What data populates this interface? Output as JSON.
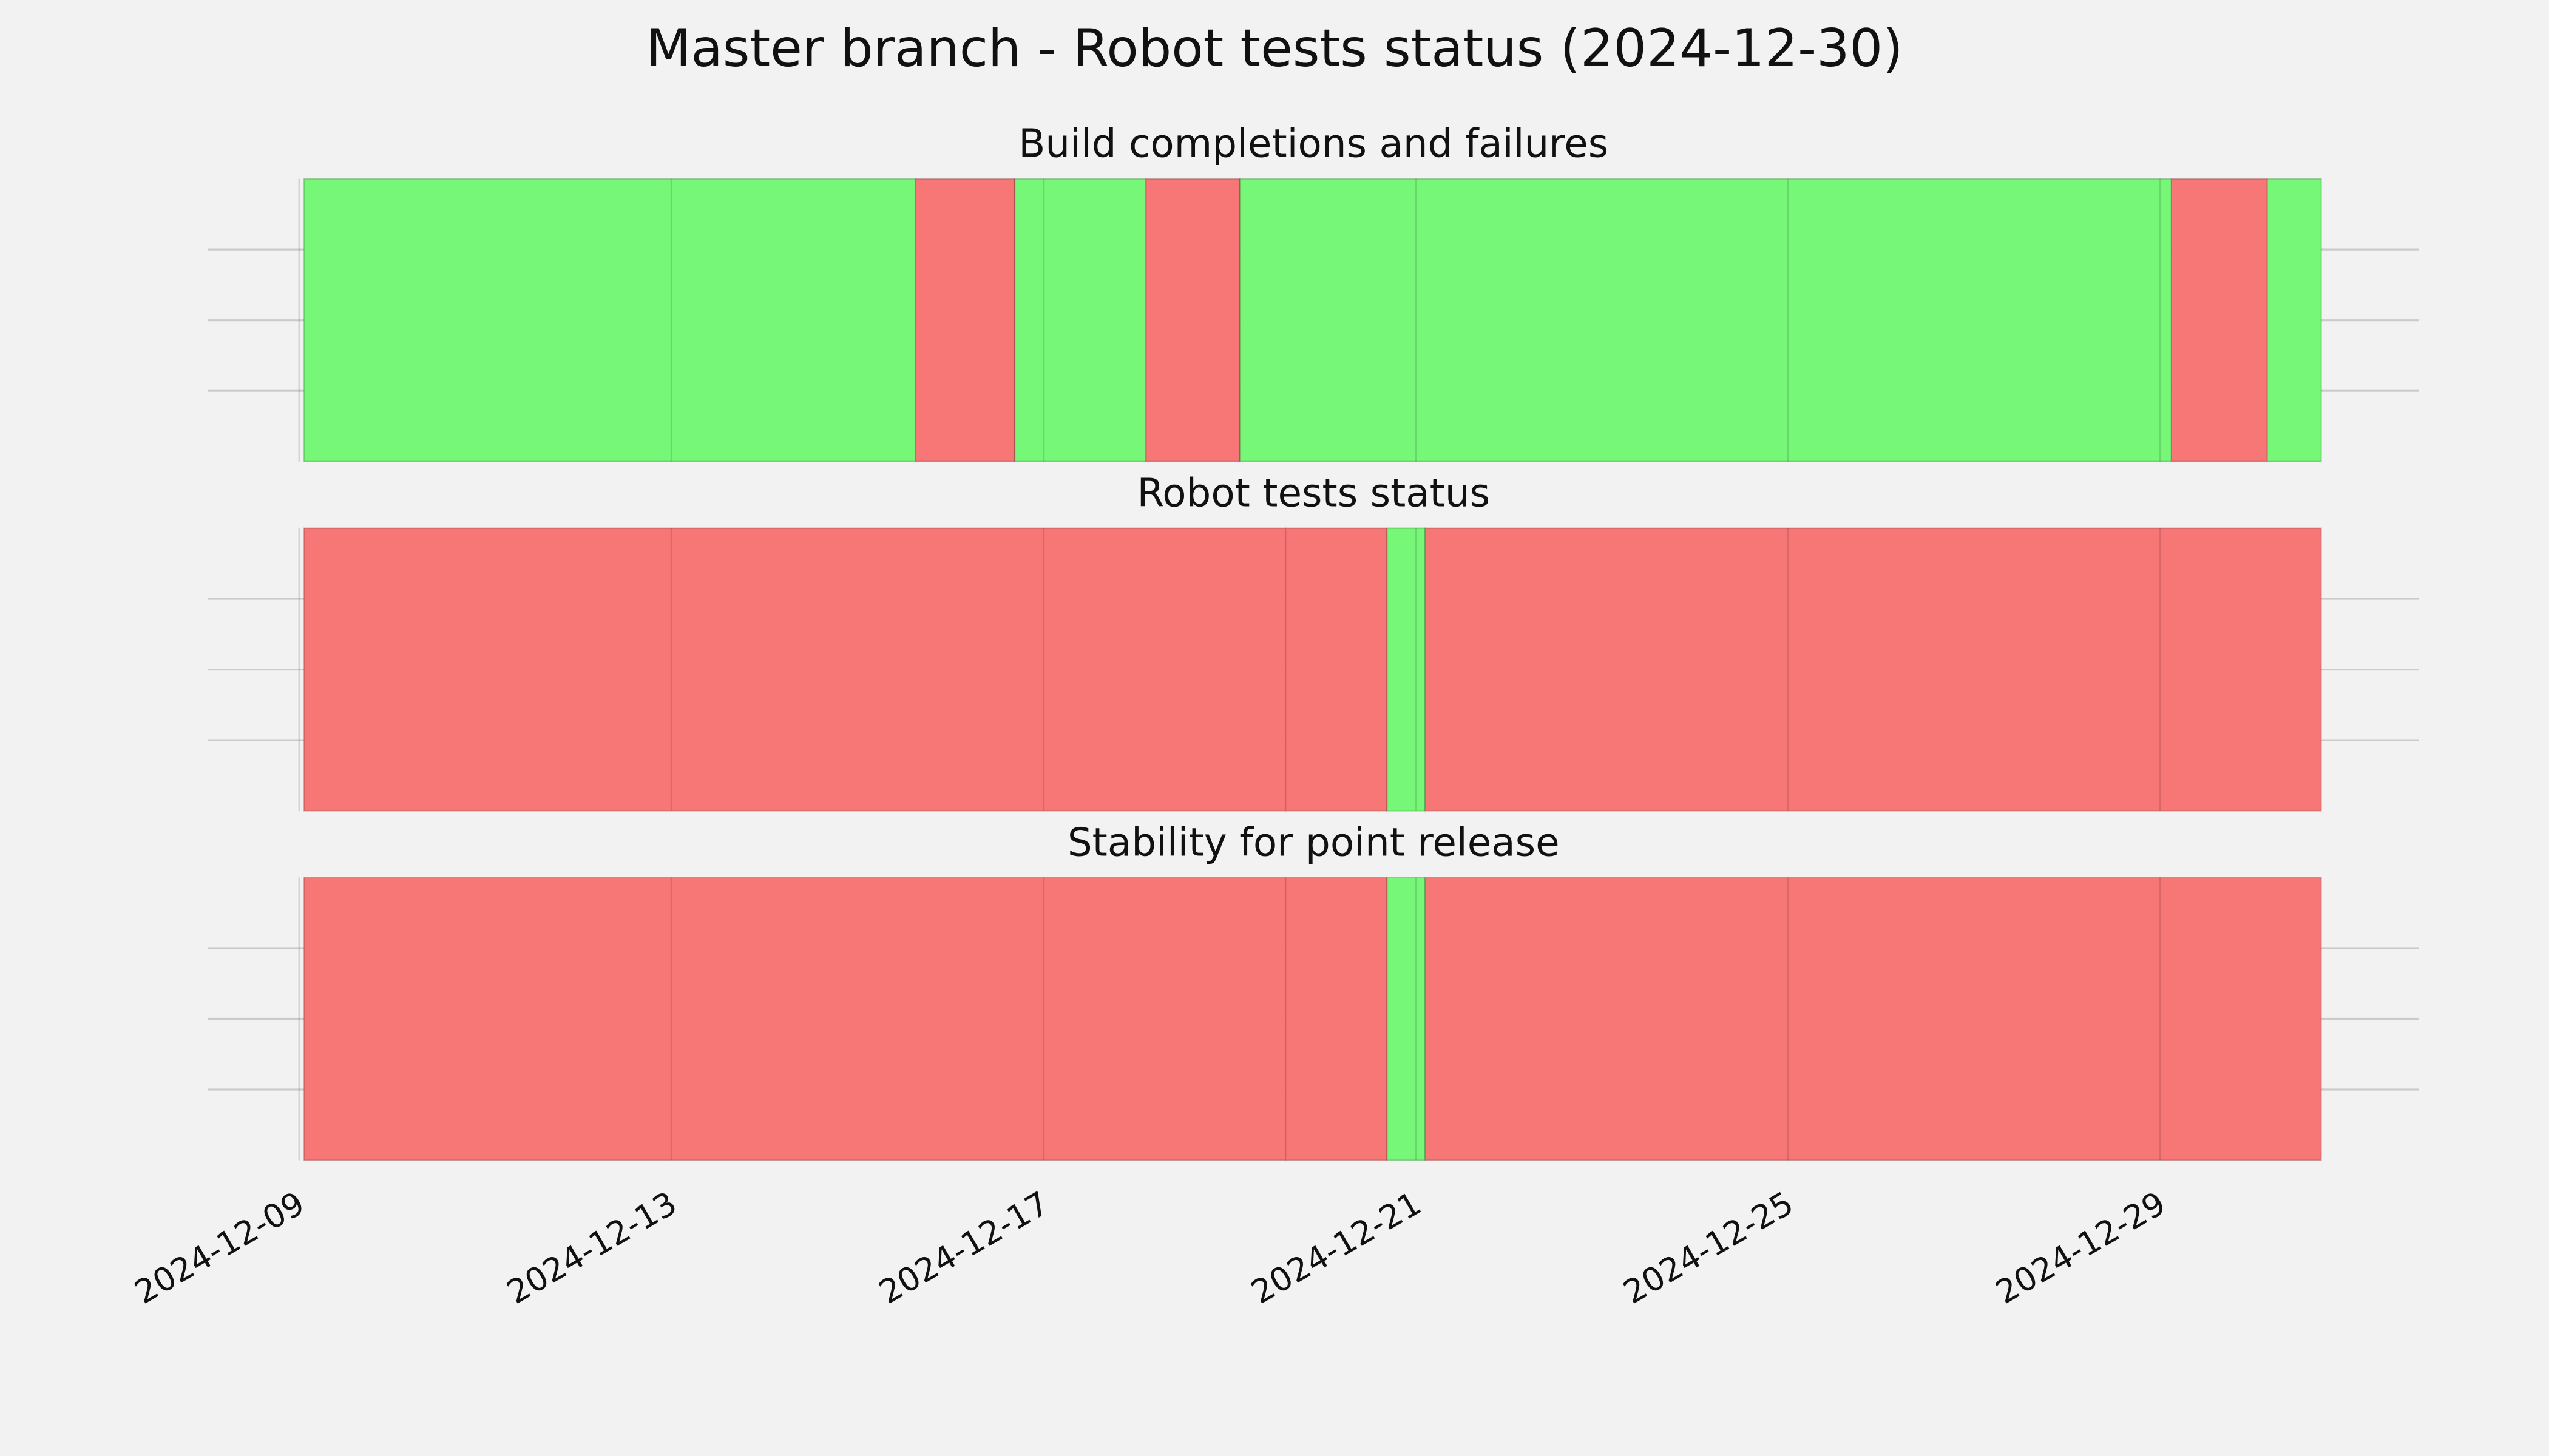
{
  "title": "Master branch - Robot tests status (2024-12-30)",
  "chart_data": [
    {
      "type": "timeline",
      "title": "Build completions and failures",
      "starts": [
        0.05,
        6.62,
        7.69,
        9.1,
        10.11,
        20.12,
        21.15
      ],
      "ends": [
        6.62,
        7.69,
        9.1,
        10.11,
        20.12,
        21.15,
        21.73
      ],
      "colors": [
        "#77f777",
        "#f77777",
        "#77f777",
        "#f77777",
        "#77f777",
        "#f77777",
        "#77f777"
      ],
      "xlim": [
        -0.98,
        22.78
      ],
      "ylim": [
        0,
        1
      ],
      "yticks": [
        0.25,
        0.5,
        0.75
      ],
      "grid": true
    },
    {
      "type": "timeline",
      "title": "Robot tests status",
      "starts": [
        0.05,
        10.6,
        11.69,
        12.1
      ],
      "ends": [
        10.6,
        11.69,
        12.1,
        21.73
      ],
      "colors": [
        "#f77777",
        "#f77777",
        "#77f777",
        "#f77777"
      ],
      "xlim": [
        -0.98,
        22.78
      ],
      "ylim": [
        0,
        1
      ],
      "yticks": [
        0.25,
        0.5,
        0.75
      ],
      "grid": true
    },
    {
      "type": "timeline",
      "title": "Stability for point release",
      "starts": [
        0.05,
        10.6,
        11.69,
        12.1
      ],
      "ends": [
        10.6,
        11.69,
        12.1,
        21.73
      ],
      "colors": [
        "#f77777",
        "#f77777",
        "#77f777",
        "#f77777"
      ],
      "xlim": [
        -0.98,
        22.78
      ],
      "ylim": [
        0,
        1
      ],
      "yticks": [
        0.25,
        0.5,
        0.75
      ],
      "grid": true,
      "xticks": [
        {
          "value": 0,
          "label": "2024-12-09"
        },
        {
          "value": 4,
          "label": "2024-12-13"
        },
        {
          "value": 8,
          "label": "2024-12-17"
        },
        {
          "value": 12,
          "label": "2024-12-21"
        },
        {
          "value": 16,
          "label": "2024-12-25"
        },
        {
          "value": 20,
          "label": "2024-12-29"
        }
      ]
    }
  ]
}
